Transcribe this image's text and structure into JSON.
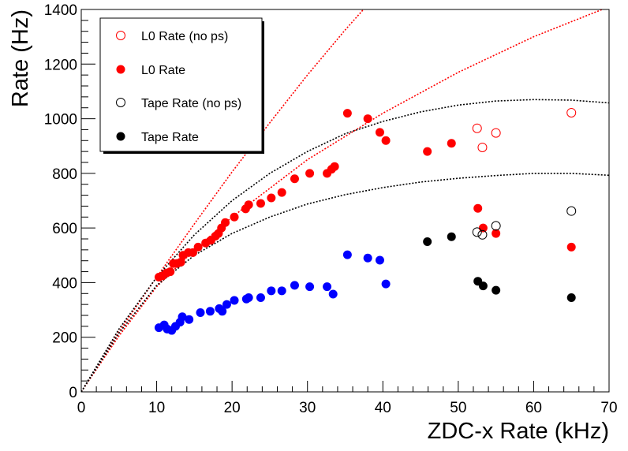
{
  "chart_data": {
    "type": "scatter",
    "title": "",
    "xlabel": "ZDC-x Rate (kHz)",
    "ylabel": "Rate (Hz)",
    "xlim": [
      0,
      70
    ],
    "ylim": [
      0,
      1400
    ],
    "xticks": [
      0,
      10,
      20,
      30,
      40,
      50,
      60,
      70
    ],
    "yticks": [
      0,
      200,
      400,
      600,
      800,
      1000,
      1200,
      1400
    ],
    "grid": false,
    "legend_position": "top-left",
    "legend": [
      {
        "label": "L0 Rate (no ps)",
        "marker": "open-circle",
        "color": "#ff0000"
      },
      {
        "label": "L0 Rate",
        "marker": "filled-circle",
        "color": "#ff0000"
      },
      {
        "label": "Tape Rate (no ps)",
        "marker": "open-circle",
        "color": "#000000"
      },
      {
        "label": "Tape Rate",
        "marker": "filled-circle",
        "color": "#000000"
      }
    ],
    "series": [
      {
        "marker": "open-circle",
        "color": "#ff0000",
        "points": [
          [
            52.5,
            965
          ],
          [
            53.2,
            895
          ],
          [
            55.0,
            948
          ],
          [
            65.0,
            1022
          ]
        ]
      },
      {
        "marker": "filled-circle",
        "color": "#ff0000",
        "points": [
          [
            10.3,
            420
          ],
          [
            10.8,
            425
          ],
          [
            11.3,
            435
          ],
          [
            11.8,
            440
          ],
          [
            12.2,
            470
          ],
          [
            12.7,
            470
          ],
          [
            13.2,
            475
          ],
          [
            13.5,
            500
          ],
          [
            14.2,
            510
          ],
          [
            14.8,
            510
          ],
          [
            15.5,
            530
          ],
          [
            16.5,
            545
          ],
          [
            17.2,
            555
          ],
          [
            17.8,
            570
          ],
          [
            18.2,
            580
          ],
          [
            18.6,
            600
          ],
          [
            19.1,
            620
          ],
          [
            20.3,
            640
          ],
          [
            21.8,
            670
          ],
          [
            22.2,
            685
          ],
          [
            23.8,
            690
          ],
          [
            25.2,
            710
          ],
          [
            26.6,
            730
          ],
          [
            28.3,
            780
          ],
          [
            30.3,
            800
          ],
          [
            32.6,
            800
          ],
          [
            33.2,
            815
          ],
          [
            33.6,
            825
          ],
          [
            35.3,
            1020
          ],
          [
            38.0,
            1000
          ],
          [
            39.6,
            950
          ],
          [
            40.4,
            920
          ],
          [
            45.9,
            880
          ],
          [
            49.1,
            910
          ],
          [
            52.6,
            672
          ],
          [
            53.3,
            600
          ],
          [
            55.0,
            580
          ],
          [
            65.0,
            530
          ]
        ]
      },
      {
        "marker": "open-circle",
        "color": "#000000",
        "points": [
          [
            52.5,
            585
          ],
          [
            53.2,
            575
          ],
          [
            55.0,
            608
          ],
          [
            65.0,
            662
          ]
        ]
      },
      {
        "marker": "filled-circle",
        "color": "#000000",
        "points": [
          [
            45.9,
            550
          ],
          [
            49.1,
            568
          ],
          [
            52.6,
            405
          ],
          [
            53.3,
            388
          ],
          [
            55.0,
            372
          ],
          [
            65.0,
            345
          ]
        ]
      },
      {
        "marker": "filled-circle",
        "color": "#0000ff",
        "points": [
          [
            10.3,
            235
          ],
          [
            11.0,
            245
          ],
          [
            11.4,
            230
          ],
          [
            12.0,
            225
          ],
          [
            12.5,
            240
          ],
          [
            13.1,
            255
          ],
          [
            13.4,
            275
          ],
          [
            14.3,
            265
          ],
          [
            15.8,
            290
          ],
          [
            17.1,
            295
          ],
          [
            18.3,
            305
          ],
          [
            18.7,
            295
          ],
          [
            19.3,
            320
          ],
          [
            20.3,
            335
          ],
          [
            21.9,
            340
          ],
          [
            22.2,
            345
          ],
          [
            23.8,
            345
          ],
          [
            25.2,
            370
          ],
          [
            26.6,
            370
          ],
          [
            28.3,
            390
          ],
          [
            30.3,
            385
          ],
          [
            32.6,
            385
          ],
          [
            33.4,
            358
          ],
          [
            35.3,
            502
          ],
          [
            38.0,
            490
          ],
          [
            39.6,
            482
          ],
          [
            40.4,
            395
          ]
        ]
      }
    ],
    "curves": [
      {
        "color": "#ff0000",
        "style": "dotted",
        "points": [
          [
            0,
            0
          ],
          [
            5,
            220
          ],
          [
            10,
            420
          ],
          [
            15,
            615
          ],
          [
            20,
            805
          ],
          [
            25,
            985
          ],
          [
            30,
            1160
          ],
          [
            35,
            1325
          ],
          [
            40,
            1480
          ]
        ]
      },
      {
        "color": "#ff0000",
        "style": "dotted",
        "points": [
          [
            0,
            0
          ],
          [
            5,
            205
          ],
          [
            10,
            385
          ],
          [
            15,
            520
          ],
          [
            20,
            640
          ],
          [
            30,
            850
          ],
          [
            40,
            1020
          ],
          [
            50,
            1170
          ],
          [
            60,
            1300
          ],
          [
            70,
            1410
          ]
        ]
      },
      {
        "color": "#000000",
        "style": "dotted",
        "points": [
          [
            0,
            0
          ],
          [
            5,
            230
          ],
          [
            10,
            420
          ],
          [
            15,
            575
          ],
          [
            20,
            700
          ],
          [
            25,
            800
          ],
          [
            30,
            880
          ],
          [
            35,
            945
          ],
          [
            40,
            990
          ],
          [
            45,
            1025
          ],
          [
            50,
            1050
          ],
          [
            55,
            1065
          ],
          [
            60,
            1070
          ],
          [
            65,
            1068
          ],
          [
            70,
            1058
          ]
        ]
      },
      {
        "color": "#000000",
        "style": "dotted",
        "points": [
          [
            0,
            0
          ],
          [
            5,
            215
          ],
          [
            10,
            390
          ],
          [
            15,
            500
          ],
          [
            20,
            580
          ],
          [
            25,
            640
          ],
          [
            30,
            688
          ],
          [
            35,
            722
          ],
          [
            40,
            748
          ],
          [
            45,
            768
          ],
          [
            50,
            782
          ],
          [
            55,
            792
          ],
          [
            60,
            800
          ],
          [
            65,
            800
          ],
          [
            70,
            793
          ]
        ]
      }
    ]
  }
}
